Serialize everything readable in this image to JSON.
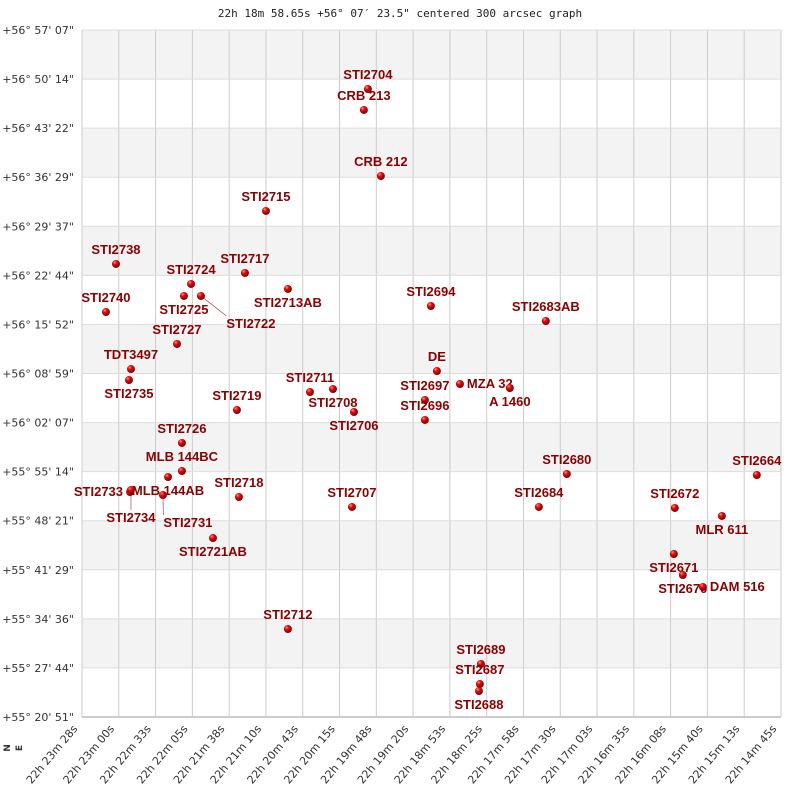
{
  "chart_data": {
    "type": "scatter",
    "title": "22h 18m 58.65s +56° 07′ 23.5\" centered 300 arcsec graph",
    "x_units": "RA seconds after 22h 00m 00s (increasing to the left)",
    "y_units": "Dec arcminutes above +55° 00′",
    "xlim": [
      1408,
      885.5
    ],
    "ylim": [
      20.85,
      117.117
    ],
    "grid": true,
    "compass": {
      "north": "N",
      "east": "E"
    },
    "x_ticks": [
      "22h 23m 28s",
      "22h 23m 00s",
      "22h 22m 33s",
      "22h 22m 05s",
      "22h 21m 38s",
      "22h 21m 10s",
      "22h 20m 43s",
      "22h 20m 15s",
      "22h 19m 48s",
      "22h 19m 20s",
      "22h 18m 53s",
      "22h 18m 25s",
      "22h 17m 58s",
      "22h 17m 30s",
      "22h 17m 03s",
      "22h 16m 35s",
      "22h 16m 08s",
      "22h 15m 40s",
      "22h 15m 13s",
      "22h 14m 45s"
    ],
    "y_ticks": [
      "+56° 57' 07\"",
      "+56° 50' 14\"",
      "+56° 43' 22\"",
      "+56° 36' 29\"",
      "+56° 29' 37\"",
      "+56° 22' 44\"",
      "+56° 15' 52\"",
      "+56° 08' 59\"",
      "+56° 02' 07\"",
      "+55° 55' 14\"",
      "+55° 48' 21\"",
      "+55° 41' 29\"",
      "+55° 34' 36\"",
      "+55° 27' 44\"",
      "+55° 20' 51\""
    ],
    "points": [
      {
        "name": "STI2704",
        "ra": 1194.3,
        "dec": 108.85
      },
      {
        "name": "CRB 213",
        "ra": 1197.3,
        "dec": 105.91
      },
      {
        "name": "CRB 212",
        "ra": 1184.6,
        "dec": 96.66
      },
      {
        "name": "STI2715",
        "ra": 1270.5,
        "dec": 91.76
      },
      {
        "name": "STI2738",
        "ra": 1382.6,
        "dec": 84.33
      },
      {
        "name": "STI2717",
        "ra": 1286.2,
        "dec": 83.07
      },
      {
        "name": "STI2713AB",
        "ra": 1254.1,
        "dec": 80.83
      },
      {
        "name": "STI2724",
        "ra": 1326.5,
        "dec": 81.53
      },
      {
        "name": "STI2725",
        "ra": 1331.8,
        "dec": 79.85
      },
      {
        "name": "STI2722",
        "ra": 1319.1,
        "dec": 79.85
      },
      {
        "name": "STI2740",
        "ra": 1390.1,
        "dec": 77.6
      },
      {
        "name": "STI2694",
        "ra": 1147.2,
        "dec": 78.44
      },
      {
        "name": "STI2683AB",
        "ra": 1061.3,
        "dec": 76.34
      },
      {
        "name": "STI2727",
        "ra": 1337.0,
        "dec": 73.12
      },
      {
        "name": "TDT3497",
        "ra": 1371.4,
        "dec": 69.61
      },
      {
        "name": "STI2735",
        "ra": 1372.9,
        "dec": 68.07
      },
      {
        "name": "STI2711",
        "ra": 1237.6,
        "dec": 66.39
      },
      {
        "name": "STI2708",
        "ra": 1220.4,
        "dec": 66.81
      },
      {
        "name": "STI2706",
        "ra": 1204.7,
        "dec": 63.59
      },
      {
        "name": "DE",
        "ra": 1142.7,
        "dec": 69.33
      },
      {
        "name": "STI2697",
        "ra": 1151.7,
        "dec": 65.27
      },
      {
        "name": "STI2696",
        "ra": 1151.7,
        "dec": 62.47
      },
      {
        "name": "MZA  32",
        "ra": 1125.5,
        "dec": 67.51
      },
      {
        "name": "A  1460",
        "ra": 1088.2,
        "dec": 66.95
      },
      {
        "name": "STI2719",
        "ra": 1292.2,
        "dec": 63.87
      },
      {
        "name": "STI2726",
        "ra": 1333.3,
        "dec": 59.25
      },
      {
        "name": "MLB 144BC",
        "ra": 1333.3,
        "dec": 55.32
      },
      {
        "name": "MLB 144AB",
        "ra": 1343.7,
        "dec": 54.48
      },
      {
        "name": "STI2733",
        "ra": 1372.1,
        "dec": 52.38
      },
      {
        "name": "STI2734",
        "ra": 1371.4,
        "dec": 52.66
      },
      {
        "name": "STI2731",
        "ra": 1347.5,
        "dec": 51.96
      },
      {
        "name": "STI2718",
        "ra": 1290.7,
        "dec": 51.68
      },
      {
        "name": "STI2721AB",
        "ra": 1310.1,
        "dec": 45.93
      },
      {
        "name": "STI2707",
        "ra": 1206.2,
        "dec": 50.28
      },
      {
        "name": "STI2684",
        "ra": 1066.5,
        "dec": 50.28
      },
      {
        "name": "STI2680",
        "ra": 1045.6,
        "dec": 54.9
      },
      {
        "name": "STI2664",
        "ra": 903.6,
        "dec": 54.76
      },
      {
        "name": "STI2672",
        "ra": 964.9,
        "dec": 50.14
      },
      {
        "name": "MLR 611",
        "ra": 929.7,
        "dec": 49.02
      },
      {
        "name": "STI2671",
        "ra": 965.6,
        "dec": 43.69
      },
      {
        "name": "STI2670",
        "ra": 958.9,
        "dec": 40.75
      },
      {
        "name": "DAM 516",
        "ra": 943.9,
        "dec": 39.07
      },
      {
        "name": "STI2712",
        "ra": 1254.1,
        "dec": 33.18
      },
      {
        "name": "STI2689",
        "ra": 1109.8,
        "dec": 28.28
      },
      {
        "name": "STI2687",
        "ra": 1110.6,
        "dec": 25.47
      },
      {
        "name": "STI2688",
        "ra": 1111.3,
        "dec": 24.49
      }
    ]
  }
}
